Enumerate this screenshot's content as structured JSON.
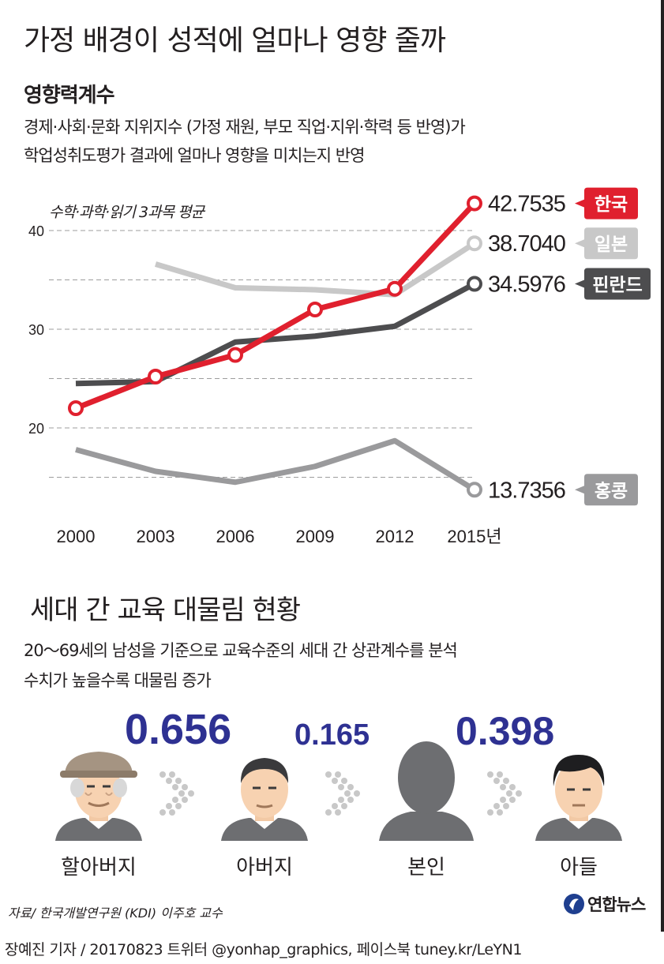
{
  "title": "가정 배경이 성적에 얼마나 영향 줄까",
  "subtitle": "영향력계수",
  "description": [
    "경제·사회·문화 지위지수 (가정 재원, 부모 직업·지위·학력 등 반영)가",
    "학업성취도평가 결과에 얼마나 영향을 미치는지 반영"
  ],
  "chart_data": {
    "type": "line",
    "note": "수학·과학·읽기 3과목 평균",
    "x": [
      "2000",
      "2003",
      "2006",
      "2009",
      "2012",
      "2015년"
    ],
    "ylim": [
      14,
      44
    ],
    "yticks": [
      20,
      30,
      40
    ],
    "grid": true,
    "series": [
      {
        "name": "한국",
        "values": [
          22.0,
          25.2,
          27.4,
          32.0,
          34.1,
          42.7535
        ],
        "end_label": "42.7535",
        "color": "#e0202e"
      },
      {
        "name": "일본",
        "values": [
          null,
          36.6,
          34.2,
          34.0,
          33.5,
          38.704
        ],
        "end_label": "38.7040",
        "color": "#c8c8c8"
      },
      {
        "name": "핀란드",
        "values": [
          24.5,
          24.7,
          28.7,
          29.3,
          30.3,
          34.5976
        ],
        "end_label": "34.5976",
        "color": "#4d4d4f"
      },
      {
        "name": "홍콩",
        "values": [
          17.8,
          15.6,
          14.5,
          16.1,
          18.7,
          13.7356
        ],
        "end_label": "13.7356",
        "color": "#9a9a9c"
      }
    ]
  },
  "section2": {
    "title": "세대 간 교육 대물림 현황",
    "description": [
      "20～69세의 남성을 기준으로 교육수준의 세대 간 상관계수를 분석",
      "수치가 높을수록 대물림 증가"
    ],
    "coefficients": [
      "0.656",
      "0.165",
      "0.398"
    ],
    "people": [
      "할아버지",
      "아버지",
      "본인",
      "아들"
    ]
  },
  "source": "자료/ 한국개발연구원 (KDI) 이주호 교수",
  "logo": "연합뉴스",
  "credit": "장예진 기자 / 20170823 트위터 @yonhap_graphics, 페이스북 tuney.kr/LeYN1",
  "colors": {
    "accent_red": "#e0202e",
    "navy": "#2e3192"
  }
}
